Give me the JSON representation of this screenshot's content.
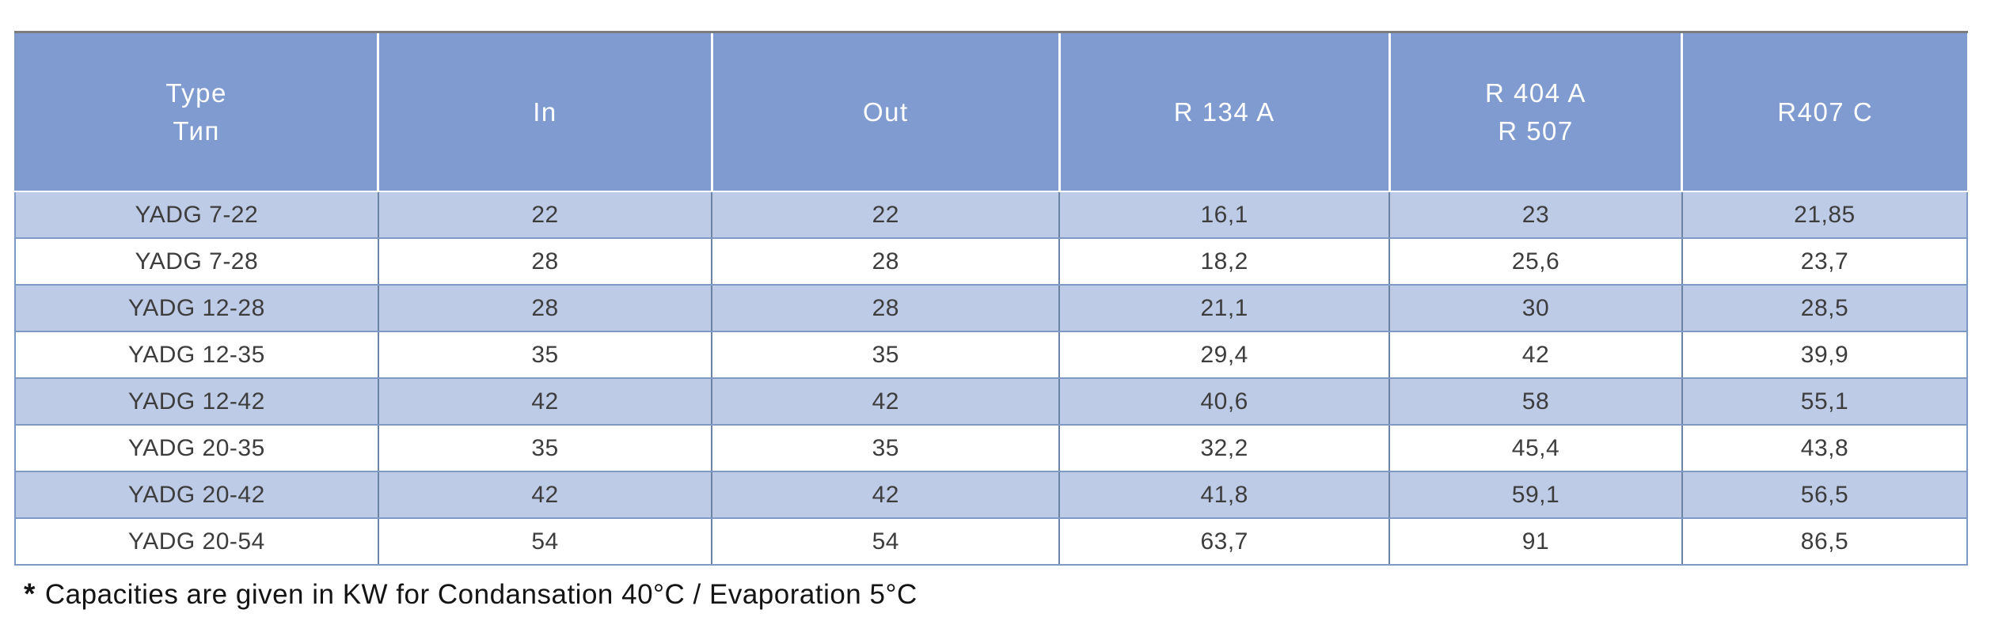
{
  "table": {
    "columns": [
      {
        "id": "type",
        "label_lines": [
          "Type",
          "Тип"
        ]
      },
      {
        "id": "in",
        "label_lines": [
          "In"
        ]
      },
      {
        "id": "out",
        "label_lines": [
          "Out"
        ]
      },
      {
        "id": "r134a",
        "label_lines": [
          "R 134 A"
        ]
      },
      {
        "id": "r404a-r507",
        "label_lines": [
          "R 404 A",
          "R 507"
        ]
      },
      {
        "id": "r407c",
        "label_lines": [
          "R407 C"
        ]
      }
    ],
    "rows": [
      {
        "cells": [
          "YADG 7-22",
          "22",
          "22",
          "16,1",
          "23",
          "21,85"
        ]
      },
      {
        "cells": [
          "YADG 7-28",
          "28",
          "28",
          "18,2",
          "25,6",
          "23,7"
        ]
      },
      {
        "cells": [
          "YADG 12-28",
          "28",
          "28",
          "21,1",
          "30",
          "28,5"
        ]
      },
      {
        "cells": [
          "YADG 12-35",
          "35",
          "35",
          "29,4",
          "42",
          "39,9"
        ]
      },
      {
        "cells": [
          "YADG 12-42",
          "42",
          "42",
          "40,6",
          "58",
          "55,1"
        ]
      },
      {
        "cells": [
          "YADG 20-35",
          "35",
          "35",
          "32,2",
          "45,4",
          "43,8"
        ]
      },
      {
        "cells": [
          "YADG 20-42",
          "42",
          "42",
          "41,8",
          "59,1",
          "56,5"
        ]
      },
      {
        "cells": [
          "YADG 20-54",
          "54",
          "54",
          "63,7",
          "91",
          "86,5"
        ]
      }
    ]
  },
  "footnote": {
    "marker": "*",
    "text": "Capacities are given in KW for Condansation 40°C / Evaporation 5°C"
  },
  "colors": {
    "header_bg": "#7f9bd0",
    "header_text": "#ffffff",
    "band_bg": "#bdcbe6",
    "row_white": "#ffffff",
    "body_text": "#3d3d3d",
    "grid_h": "#7e99c4",
    "grid_v": "#6b84a6",
    "top_border": "#7c7c7c"
  }
}
